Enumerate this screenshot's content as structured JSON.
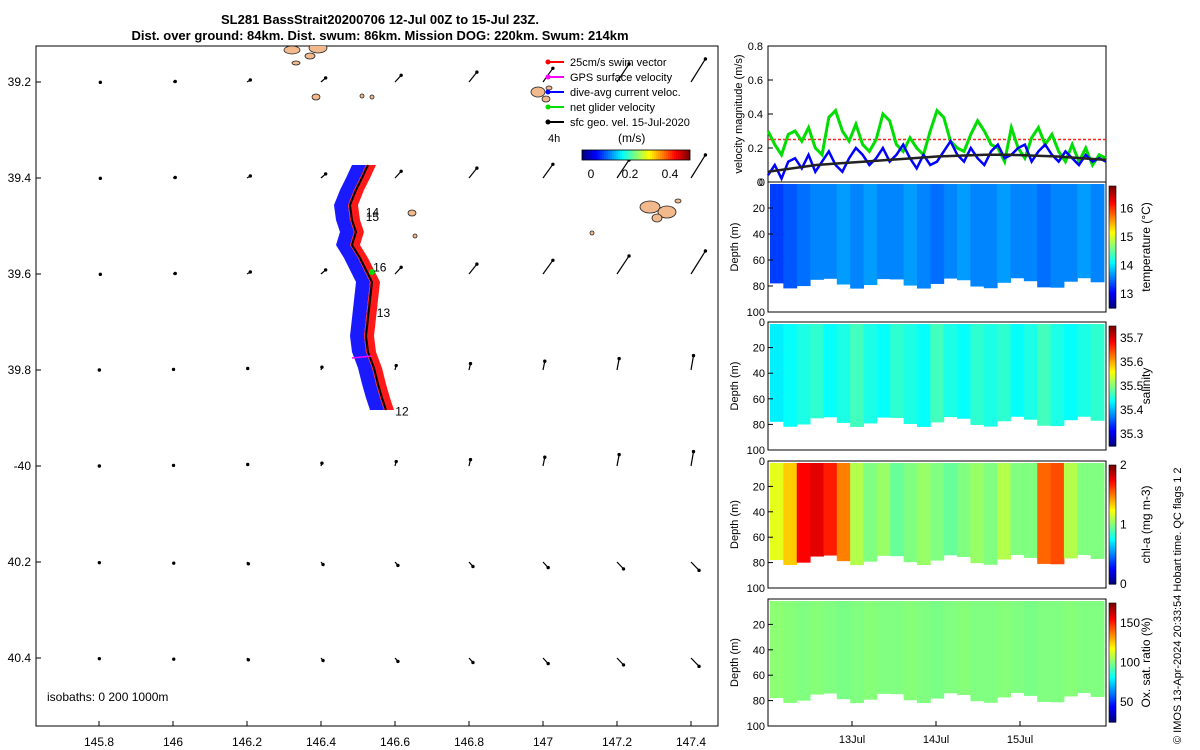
{
  "header": {
    "title_line1": "SL281 BassStrait20200706 12-Jul 00Z to 15-Jul 23Z.",
    "title_line2": "Dist. over ground: 84km. Dist. swum: 86km. Mission DOG: 220km. Swum: 214km"
  },
  "credit": "© IMOS 13-Apr-2024 20:33:54 Hobart time. QC flags 1  2",
  "map": {
    "xticks": [
      145.8,
      146,
      146.2,
      146.4,
      146.6,
      146.8,
      147,
      147.2,
      147.4
    ],
    "xtick_labels": [
      "145.8",
      "146",
      "146.2",
      "146.4",
      "146.6",
      "146.8",
      "147",
      "147.2",
      "147.4"
    ],
    "yticks": [
      -39.2,
      -39.4,
      -39.6,
      -39.8,
      -40,
      -40.2,
      -40.4
    ],
    "ytick_labels": [
      "39.2",
      "39.4",
      "39.6",
      "39.8",
      "-40",
      "40.2",
      "40.4"
    ],
    "isobaths_label": "isobaths: 0   200  1000m",
    "legend": [
      {
        "label": "25cm/s swim vector",
        "color": "#ff0000"
      },
      {
        "label": "GPS surface velocity",
        "color": "#ff00ff"
      },
      {
        "label": "dive-avg current veloc.",
        "color": "#0000ff"
      },
      {
        "label": "net glider velocity",
        "color": "#00dd00"
      },
      {
        "label": "sfc geo. vel. 15-Jul-2020",
        "color": "#000000"
      }
    ],
    "colorbar": {
      "ticks": [
        "0",
        "0.2",
        "0.4"
      ],
      "unit": "(m/s)",
      "marker": "4h"
    },
    "day_labels": [
      {
        "text": "14",
        "lon": 146.51,
        "lat": -39.48
      },
      {
        "text": "15",
        "lon": 146.51,
        "lat": -39.49
      },
      {
        "text": "16",
        "lon": 146.53,
        "lat": -39.595
      },
      {
        "text": "13",
        "lon": 146.54,
        "lat": -39.69
      },
      {
        "text": "12",
        "lon": 146.59,
        "lat": -39.895
      }
    ]
  },
  "chart_data": [
    {
      "type": "line",
      "ylabel": "velocity magnitude (m/s)",
      "ylim": [
        0,
        0.8
      ],
      "yticks": [
        "0",
        "0.2",
        "0.4",
        "0.6",
        "0.8"
      ],
      "reference_level": 0.25,
      "series": [
        {
          "color": "#00dd00",
          "values": [
            0.3,
            0.22,
            0.16,
            0.28,
            0.3,
            0.24,
            0.32,
            0.2,
            0.16,
            0.38,
            0.42,
            0.3,
            0.24,
            0.34,
            0.22,
            0.18,
            0.25,
            0.4,
            0.36,
            0.22,
            0.18,
            0.26,
            0.2,
            0.16,
            0.3,
            0.42,
            0.38,
            0.24,
            0.2,
            0.18,
            0.28,
            0.36,
            0.3,
            0.22,
            0.2,
            0.12,
            0.32,
            0.2,
            0.14,
            0.26,
            0.32,
            0.22,
            0.28,
            0.18,
            0.12,
            0.22,
            0.12,
            0.2,
            0.1,
            0.16,
            0.14
          ]
        },
        {
          "color": "#0000ff",
          "values": [
            0.04,
            0.1,
            0.02,
            0.12,
            0.14,
            0.08,
            0.16,
            0.06,
            0.12,
            0.18,
            0.1,
            0.06,
            0.14,
            0.2,
            0.16,
            0.1,
            0.14,
            0.2,
            0.12,
            0.16,
            0.22,
            0.14,
            0.08,
            0.16,
            0.1,
            0.12,
            0.18,
            0.24,
            0.16,
            0.12,
            0.2,
            0.14,
            0.1,
            0.18,
            0.22,
            0.14,
            0.16,
            0.2,
            0.22,
            0.12,
            0.18,
            0.22,
            0.16,
            0.12,
            0.18,
            0.14,
            0.1,
            0.16,
            0.12,
            0.14,
            0.12
          ]
        },
        {
          "color": "#222222",
          "values": [
            0.06,
            0.08,
            0.1,
            0.11,
            0.12,
            0.13,
            0.14,
            0.15,
            0.155,
            0.16,
            0.16,
            0.155,
            0.15,
            0.14,
            0.13
          ]
        }
      ],
      "xtick_labels": [
        "13Jul",
        "14Jul",
        "15Jul"
      ]
    },
    {
      "type": "heatmap",
      "ylabel": "Depth (m)",
      "colorbar_label": "temperature (°C)",
      "clim": [
        12.5,
        16.8
      ],
      "colorbar_ticks": [
        13,
        14,
        15,
        16
      ],
      "yticks": [
        "0",
        "20",
        "40",
        "60",
        "80",
        "100"
      ],
      "background_value": 13.6,
      "profile_values": [
        13.3,
        13.4,
        13.5,
        13.6,
        13.6,
        13.7,
        13.6,
        13.7,
        13.6,
        13.6,
        13.7,
        13.6,
        13.5,
        13.6,
        13.7,
        13.6,
        13.6,
        13.7,
        13.6,
        13.6,
        13.5,
        13.6,
        13.6,
        13.7,
        13.6
      ]
    },
    {
      "type": "heatmap",
      "ylabel": "Depth (m)",
      "colorbar_label": "salinity",
      "clim": [
        35.25,
        35.75
      ],
      "colorbar_ticks": [
        "35.3",
        "35.4",
        "35.5",
        "35.6",
        "35.7"
      ],
      "yticks": [
        "0",
        "20",
        "40",
        "60",
        "80",
        "100"
      ],
      "background_value": 35.45,
      "profile_values": [
        35.43,
        35.44,
        35.45,
        35.46,
        35.44,
        35.45,
        35.47,
        35.45,
        35.44,
        35.46,
        35.45,
        35.44,
        35.47,
        35.45,
        35.44,
        35.46,
        35.45,
        35.46,
        35.44,
        35.45,
        35.47,
        35.45,
        35.44,
        35.45,
        35.46
      ]
    },
    {
      "type": "heatmap",
      "ylabel": "Depth (m)",
      "colorbar_label": "chl-a (mg m-3)",
      "clim": [
        0,
        2
      ],
      "colorbar_ticks": [
        "0",
        "1",
        "2"
      ],
      "yticks": [
        "0",
        "20",
        "40",
        "60",
        "80",
        "100"
      ],
      "background_value": 1.05,
      "profile_values": [
        1.2,
        1.35,
        1.75,
        1.8,
        1.7,
        1.5,
        1.1,
        1.0,
        1.05,
        0.95,
        1.0,
        1.05,
        1.0,
        0.95,
        1.0,
        1.05,
        1.0,
        1.1,
        1.0,
        1.0,
        1.55,
        1.6,
        1.1,
        1.0,
        1.0
      ]
    },
    {
      "type": "heatmap",
      "ylabel": "Depth (m)",
      "colorbar_label": "Ox. sat. ratio (%)",
      "clim": [
        25,
        175
      ],
      "colorbar_ticks": [
        "50",
        "100",
        "150"
      ],
      "yticks": [
        "20",
        "40",
        "60",
        "80",
        "100"
      ],
      "background_value": 100,
      "profile_values": [
        102,
        101,
        100,
        101,
        100,
        99,
        100,
        101,
        100,
        100,
        101,
        100,
        99,
        100,
        101,
        100,
        100,
        101,
        100,
        99,
        100,
        100,
        101,
        100,
        100
      ]
    }
  ]
}
